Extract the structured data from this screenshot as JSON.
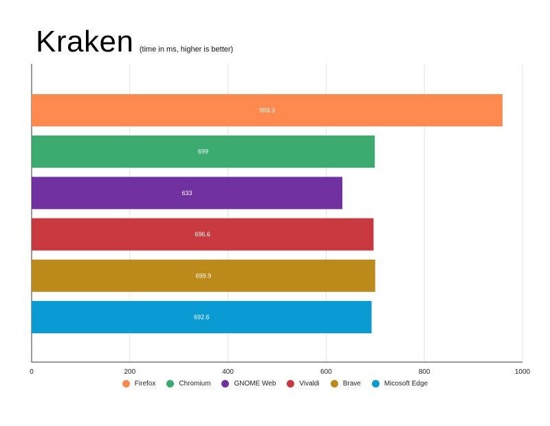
{
  "chart_data": {
    "type": "bar",
    "orientation": "horizontal",
    "title": "Kraken",
    "subtitle": "(time in ms, higher is better)",
    "categories": [
      "Firefox",
      "Chromium",
      "GNOME Web",
      "Vivaldi",
      "Brave",
      "Micosoft Edge"
    ],
    "values": [
      959.3,
      699,
      633,
      696.6,
      699.9,
      692.6
    ],
    "value_labels": [
      "959.3",
      "699",
      "633",
      "696.6",
      "699.9",
      "692.6"
    ],
    "colors": [
      "#FF8A50",
      "#3AAA6E",
      "#7030A0",
      "#C8393F",
      "#BC8A1A",
      "#0A9BD2"
    ],
    "xlim": [
      0,
      1000
    ],
    "xticks": [
      "0",
      "200",
      "400",
      "600",
      "800",
      "1000"
    ],
    "grid": true,
    "legend_position": "bottom"
  }
}
